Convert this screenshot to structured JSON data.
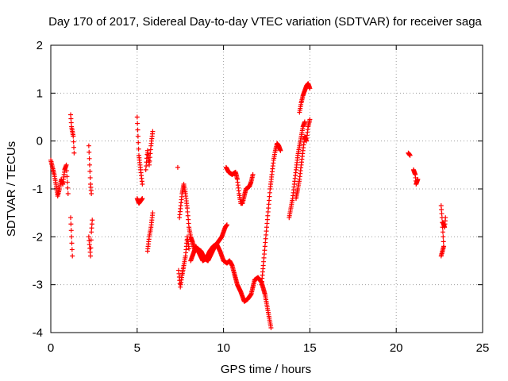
{
  "chart_data": {
    "type": "scatter",
    "title": "Day 170 of 2017, Sidereal Day-to-day VTEC variation (SDTVAR) for receiver saga",
    "xlabel": "GPS time / hours",
    "ylabel": "SDTVAR / TECUs",
    "xlim": [
      0,
      25
    ],
    "ylim": [
      -4,
      2
    ],
    "xticks": [
      0,
      5,
      10,
      15,
      20,
      25
    ],
    "yticks": [
      -4,
      -3,
      -2,
      -1,
      0,
      1,
      2
    ],
    "xtick_labels": [
      "0",
      "5",
      "10",
      "15",
      "20",
      "25"
    ],
    "ytick_labels": [
      "-4",
      "-3",
      "-2",
      "-1",
      "0",
      "1",
      "2"
    ],
    "grid": true,
    "marker": "plus",
    "series": [
      {
        "name": "SDTVAR",
        "color": "#ff0000",
        "segments": [
          [
            [
              0.0,
              -0.4
            ],
            [
              0.1,
              -0.55
            ],
            [
              0.2,
              -0.7
            ],
            [
              0.3,
              -0.9
            ],
            [
              0.4,
              -1.15
            ],
            [
              0.5,
              -1.0
            ],
            [
              0.6,
              -0.8
            ],
            [
              0.7,
              -0.9
            ],
            [
              0.8,
              -0.6
            ],
            [
              0.9,
              -0.5
            ],
            [
              1.0,
              -1.1
            ]
          ],
          [
            [
              1.15,
              0.55
            ],
            [
              1.2,
              0.3
            ],
            [
              1.3,
              0.1
            ],
            [
              1.35,
              -0.25
            ]
          ],
          [
            [
              1.15,
              -1.6
            ],
            [
              1.2,
              -2.0
            ],
            [
              1.25,
              -2.4
            ]
          ],
          [
            [
              2.2,
              -0.1
            ],
            [
              2.25,
              -0.5
            ],
            [
              2.3,
              -0.9
            ],
            [
              2.35,
              -1.1
            ]
          ],
          [
            [
              2.2,
              -2.0
            ],
            [
              2.3,
              -2.4
            ],
            [
              2.35,
              -1.9
            ],
            [
              2.4,
              -1.65
            ]
          ],
          [
            [
              5.0,
              0.5
            ],
            [
              5.05,
              0.1
            ],
            [
              5.1,
              -0.3
            ],
            [
              5.2,
              -0.6
            ],
            [
              5.3,
              -0.9
            ]
          ],
          [
            [
              5.0,
              -1.2
            ],
            [
              5.1,
              -1.3
            ],
            [
              5.2,
              -1.25
            ],
            [
              5.3,
              -1.2
            ]
          ],
          [
            [
              5.5,
              -0.6
            ],
            [
              5.6,
              -0.2
            ],
            [
              5.7,
              -0.5
            ],
            [
              5.8,
              -0.1
            ],
            [
              5.9,
              0.2
            ]
          ],
          [
            [
              5.6,
              -2.3
            ],
            [
              5.7,
              -2.0
            ],
            [
              5.8,
              -1.8
            ],
            [
              5.9,
              -1.5
            ]
          ],
          [
            [
              7.35,
              -0.55
            ]
          ],
          [
            [
              7.4,
              -2.7
            ],
            [
              7.5,
              -3.05
            ],
            [
              7.6,
              -2.8
            ],
            [
              7.7,
              -2.6
            ],
            [
              7.8,
              -2.4
            ],
            [
              7.9,
              -2.0
            ],
            [
              8.0,
              -2.25
            ]
          ],
          [
            [
              7.45,
              -1.6
            ],
            [
              7.6,
              -1.1
            ],
            [
              7.7,
              -0.9
            ],
            [
              7.8,
              -1.1
            ],
            [
              7.9,
              -1.4
            ],
            [
              8.0,
              -1.8
            ],
            [
              8.1,
              -2.0
            ],
            [
              8.2,
              -2.1
            ],
            [
              8.35,
              -2.3
            ],
            [
              8.5,
              -2.25
            ],
            [
              8.7,
              -2.3
            ],
            [
              8.9,
              -2.45
            ],
            [
              9.1,
              -2.5
            ],
            [
              9.3,
              -2.35
            ],
            [
              9.5,
              -2.2
            ],
            [
              9.7,
              -2.1
            ],
            [
              9.9,
              -2.0
            ],
            [
              10.0,
              -1.9
            ],
            [
              10.1,
              -1.8
            ],
            [
              10.2,
              -1.75
            ]
          ],
          [
            [
              8.1,
              -2.5
            ],
            [
              8.2,
              -2.4
            ],
            [
              8.4,
              -2.2
            ],
            [
              8.6,
              -2.35
            ],
            [
              8.8,
              -2.5
            ],
            [
              9.0,
              -2.45
            ],
            [
              9.2,
              -2.3
            ],
            [
              9.4,
              -2.2
            ],
            [
              9.6,
              -2.15
            ],
            [
              9.8,
              -2.3
            ],
            [
              10.0,
              -2.5
            ],
            [
              10.2,
              -2.55
            ],
            [
              10.35,
              -2.5
            ],
            [
              10.5,
              -2.6
            ],
            [
              10.65,
              -2.8
            ],
            [
              10.8,
              -3.0
            ],
            [
              11.0,
              -3.15
            ],
            [
              11.2,
              -3.35
            ],
            [
              11.4,
              -3.3
            ],
            [
              11.6,
              -3.2
            ],
            [
              11.8,
              -2.9
            ],
            [
              12.0,
              -2.85
            ],
            [
              12.2,
              -2.95
            ],
            [
              12.4,
              -3.2
            ],
            [
              12.55,
              -3.5
            ],
            [
              12.65,
              -3.7
            ],
            [
              12.75,
              -3.9
            ]
          ],
          [
            [
              10.15,
              -0.55
            ],
            [
              10.3,
              -0.65
            ],
            [
              10.5,
              -0.7
            ],
            [
              10.7,
              -0.65
            ],
            [
              10.8,
              -0.8
            ],
            [
              10.9,
              -1.1
            ],
            [
              11.0,
              -1.3
            ],
            [
              11.1,
              -1.3
            ],
            [
              11.2,
              -1.15
            ],
            [
              11.3,
              -1.0
            ],
            [
              11.5,
              -0.95
            ],
            [
              11.6,
              -0.85
            ],
            [
              11.7,
              -0.7
            ]
          ],
          [
            [
              12.2,
              -3.0
            ],
            [
              12.3,
              -2.6
            ],
            [
              12.4,
              -2.2
            ],
            [
              12.5,
              -1.8
            ],
            [
              12.6,
              -1.4
            ],
            [
              12.7,
              -1.0
            ],
            [
              12.8,
              -0.7
            ],
            [
              12.9,
              -0.4
            ],
            [
              13.0,
              -0.2
            ],
            [
              13.1,
              -0.05
            ],
            [
              13.2,
              -0.1
            ],
            [
              13.3,
              -0.2
            ]
          ],
          [
            [
              13.8,
              -1.6
            ],
            [
              13.9,
              -1.4
            ],
            [
              14.0,
              -1.2
            ],
            [
              14.1,
              -0.9
            ],
            [
              14.2,
              -0.6
            ],
            [
              14.3,
              -0.3
            ],
            [
              14.4,
              -0.1
            ],
            [
              14.5,
              0.1
            ],
            [
              14.6,
              0.3
            ],
            [
              14.7,
              0.4
            ]
          ],
          [
            [
              14.2,
              -1.2
            ],
            [
              14.3,
              -1.0
            ],
            [
              14.4,
              -0.8
            ],
            [
              14.5,
              -0.5
            ],
            [
              14.6,
              -0.2
            ],
            [
              14.7,
              0.1
            ],
            [
              14.8,
              0.0
            ],
            [
              14.9,
              0.3
            ],
            [
              15.0,
              0.45
            ]
          ],
          [
            [
              14.4,
              0.6
            ],
            [
              14.5,
              0.8
            ],
            [
              14.6,
              0.95
            ],
            [
              14.7,
              1.05
            ],
            [
              14.8,
              1.15
            ],
            [
              14.9,
              1.2
            ],
            [
              15.0,
              1.1
            ]
          ],
          [
            [
              20.7,
              -0.25
            ],
            [
              20.8,
              -0.3
            ]
          ],
          [
            [
              21.0,
              -0.6
            ],
            [
              21.1,
              -0.7
            ],
            [
              21.15,
              -0.9
            ],
            [
              21.25,
              -0.8
            ]
          ],
          [
            [
              22.6,
              -1.35
            ],
            [
              22.65,
              -1.6
            ],
            [
              22.7,
              -1.9
            ],
            [
              22.75,
              -2.2
            ],
            [
              22.6,
              -2.4
            ]
          ],
          [
            [
              22.7,
              -1.7
            ],
            [
              22.8,
              -1.8
            ],
            [
              22.85,
              -1.6
            ]
          ]
        ]
      }
    ]
  }
}
